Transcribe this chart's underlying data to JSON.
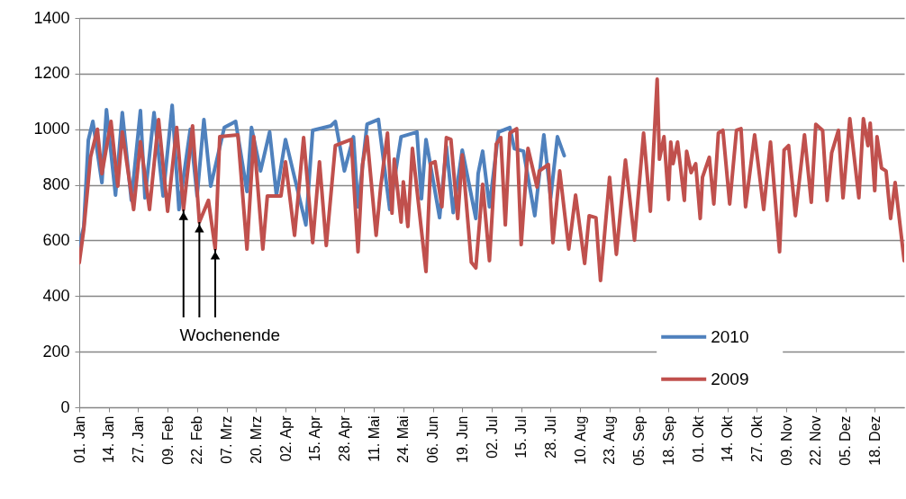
{
  "chart_data": {
    "type": "line",
    "xlim": [
      "--01-01",
      "--12-31"
    ],
    "ylim": [
      0,
      1400
    ],
    "yticks": [
      0,
      200,
      400,
      600,
      800,
      1000,
      1200,
      1400
    ],
    "xticks": [
      {
        "value": "--01-01",
        "label": "01. Jan"
      },
      {
        "value": "--01-14",
        "label": "14. Jan"
      },
      {
        "value": "--01-27",
        "label": "27. Jan"
      },
      {
        "value": "--02-09",
        "label": "09. Feb"
      },
      {
        "value": "--02-22",
        "label": "22. Feb"
      },
      {
        "value": "--03-07",
        "label": "07. Mrz"
      },
      {
        "value": "--03-20",
        "label": "20. Mrz"
      },
      {
        "value": "--04-02",
        "label": "02. Apr"
      },
      {
        "value": "--04-15",
        "label": "15. Apr"
      },
      {
        "value": "--04-28",
        "label": "28. Apr"
      },
      {
        "value": "--05-11",
        "label": "11. Mai"
      },
      {
        "value": "--05-24",
        "label": "24. Mai"
      },
      {
        "value": "--06-06",
        "label": "06. Jun"
      },
      {
        "value": "--06-19",
        "label": "19. Jun"
      },
      {
        "value": "--07-02",
        "label": "02. Jul"
      },
      {
        "value": "--07-15",
        "label": "15. Jul"
      },
      {
        "value": "--07-28",
        "label": "28. Jul"
      },
      {
        "value": "--08-10",
        "label": "10. Aug"
      },
      {
        "value": "--08-23",
        "label": "23. Aug"
      },
      {
        "value": "--09-05",
        "label": "05. Sep"
      },
      {
        "value": "--09-18",
        "label": "18. Sep"
      },
      {
        "value": "--10-01",
        "label": "01. Okt"
      },
      {
        "value": "--10-14",
        "label": "14. Okt"
      },
      {
        "value": "--10-27",
        "label": "27. Okt"
      },
      {
        "value": "--11-09",
        "label": "09. Nov"
      },
      {
        "value": "--11-22",
        "label": "22. Nov"
      },
      {
        "value": "--12-05",
        "label": "05. Dez"
      },
      {
        "value": "--12-18",
        "label": "18. Dez"
      }
    ],
    "grid": "y",
    "legend": "bottom right",
    "line_style": "solid",
    "annotations": [
      {
        "text": "Wochenende",
        "x": "--02-23",
        "y": 666
      }
    ],
    "series": [
      {
        "name": "2010",
        "color": "#4f81bd",
        "x": [
          "--01-01",
          "--01-03",
          "--01-05",
          "--01-07",
          "--01-11",
          "--01-13",
          "--01-17",
          "--01-20",
          "--01-24",
          "--01-28",
          "--01-30",
          "--02-03",
          "--02-07",
          "--02-11",
          "--02-14",
          "--02-19",
          "--02-22",
          "--02-25",
          "--02-28",
          "--03-06",
          "--03-11",
          "--03-16",
          "--03-18",
          "--03-22",
          "--03-26",
          "--03-29",
          "--04-02",
          "--04-11",
          "--04-14",
          "--04-22",
          "--04-24",
          "--04-28",
          "--05-02",
          "--05-04",
          "--05-08",
          "--05-13",
          "--05-18",
          "--05-23",
          "--05-30",
          "--06-01",
          "--06-03",
          "--06-09",
          "--06-12",
          "--06-15",
          "--06-19",
          "--06-25",
          "--06-26",
          "--06-28",
          "--07-01",
          "--07-05",
          "--07-10",
          "--07-12",
          "--07-16",
          "--07-21",
          "--07-25",
          "--07-28",
          "--07-31",
          "--08-03"
        ],
        "values": [
          580,
          650,
          960,
          1028,
          808,
          1070,
          763,
          1060,
          744,
          1067,
          753,
          1060,
          760,
          1086,
          711,
          1000,
          760,
          1035,
          795,
          1006,
          1028,
          776,
          1006,
          850,
          990,
          763,
          963,
          656,
          996,
          1012,
          1028,
          850,
          973,
          721,
          1018,
          1035,
          711,
          973,
          990,
          750,
          963,
          682,
          938,
          700,
          925,
          679,
          840,
          921,
          721,
          990,
          1006,
          930,
          921,
          689,
          980,
          753,
          973,
          905
        ]
      },
      {
        "name": "2009",
        "color": "#c0504d",
        "x": [
          "--01-01",
          "--01-03",
          "--01-06",
          "--01-09",
          "--01-11",
          "--01-15",
          "--01-18",
          "--01-20",
          "--01-25",
          "--01-28",
          "--02-01",
          "--02-05",
          "--02-09",
          "--02-13",
          "--02-16",
          "--02-20",
          "--02-23",
          "--02-27",
          "--03-02",
          "--03-04",
          "--03-12",
          "--03-16",
          "--03-19",
          "--03-23",
          "--03-25",
          "--03-31",
          "--04-02",
          "--04-06",
          "--04-10",
          "--04-14",
          "--04-17",
          "--04-20",
          "--04-24",
          "--05-01",
          "--05-04",
          "--05-06",
          "--05-08",
          "--05-12",
          "--05-14",
          "--05-17",
          "--05-19",
          "--05-20",
          "--05-23",
          "--05-24",
          "--05-26",
          "--05-28",
          "--06-03",
          "--06-05",
          "--06-07",
          "--06-10",
          "--06-12",
          "--06-14",
          "--06-17",
          "--06-19",
          "--06-23",
          "--06-25",
          "--06-28",
          "--07-01",
          "--07-04",
          "--07-06",
          "--07-08",
          "--07-10",
          "--07-13",
          "--07-15",
          "--07-18",
          "--07-22",
          "--07-23",
          "--07-27",
          "--07-29",
          "--08-01",
          "--08-05",
          "--08-08",
          "--08-12",
          "--08-14",
          "--08-17",
          "--08-19",
          "--08-23",
          "--08-26",
          "--08-30",
          "--09-03",
          "--09-07",
          "--09-10",
          "--09-13",
          "--09-14",
          "--09-16",
          "--09-18",
          "--09-19",
          "--09-20",
          "--09-22",
          "--09-25",
          "--09-26",
          "--09-28",
          "--09-30",
          "--10-02",
          "--10-03",
          "--10-06",
          "--10-08",
          "--10-10",
          "--10-12",
          "--10-15",
          "--10-18",
          "--10-20",
          "--10-22",
          "--10-26",
          "--10-30",
          "--11-02",
          "--11-06",
          "--11-08",
          "--11-10",
          "--11-13",
          "--11-17",
          "--11-20",
          "--11-22",
          "--11-25",
          "--11-27",
          "--11-29",
          "--12-02",
          "--12-04",
          "--12-07",
          "--12-11",
          "--12-13",
          "--12-15",
          "--12-16",
          "--12-18",
          "--12-19",
          "--12-21",
          "--12-23",
          "--12-25",
          "--12-27",
          "--12-31"
        ],
        "values": [
          520,
          640,
          900,
          1000,
          840,
          1028,
          795,
          990,
          711,
          955,
          711,
          1035,
          705,
          1006,
          711,
          1012,
          666,
          744,
          569,
          973,
          980,
          569,
          973,
          569,
          760,
          760,
          883,
          618,
          970,
          592,
          883,
          582,
          941,
          963,
          559,
          873,
          973,
          618,
          792,
          986,
          698,
          892,
          666,
          811,
          650,
          931,
          488,
          876,
          883,
          721,
          970,
          963,
          679,
          908,
          521,
          501,
          802,
          527,
          947,
          970,
          656,
          986,
          1002,
          585,
          931,
          792,
          850,
          873,
          592,
          850,
          569,
          763,
          517,
          689,
          682,
          456,
          827,
          550,
          889,
          601,
          986,
          705,
          1180,
          892,
          973,
          747,
          954,
          876,
          954,
          744,
          921,
          844,
          876,
          679,
          827,
          899,
          731,
          986,
          996,
          731,
          996,
          1002,
          721,
          980,
          711,
          954,
          559,
          925,
          941,
          689,
          980,
          737,
          1018,
          996,
          744,
          915,
          996,
          753,
          1038,
          753,
          1038,
          941,
          1022,
          779,
          973,
          860,
          850,
          679,
          808,
          527
        ]
      }
    ]
  }
}
